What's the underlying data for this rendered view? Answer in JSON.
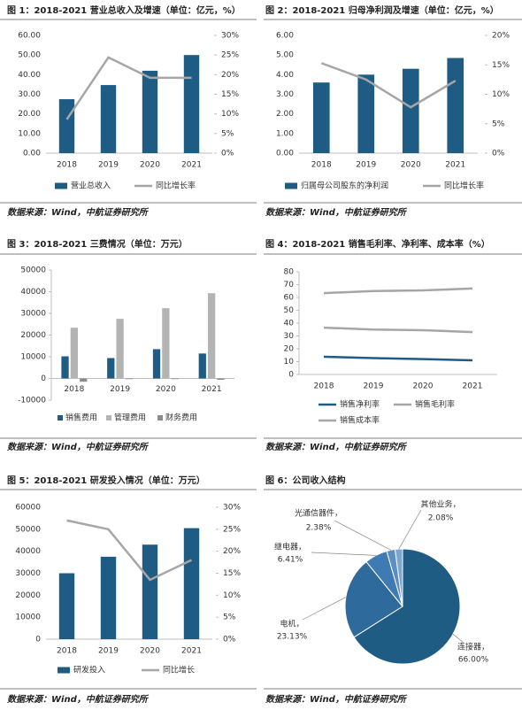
{
  "chart_data": [
    {
      "type": "combo",
      "title": "图 1：2018-2021 营业总收入及增速（单位：亿元，%）",
      "source": "数据来源：Wind，中航证券研究所",
      "categories": [
        "2018",
        "2019",
        "2020",
        "2021"
      ],
      "series": [
        {
          "name": "营业总收入",
          "type": "bar",
          "color": "#1f5c84",
          "values": [
            27.5,
            34.7,
            42,
            50
          ]
        },
        {
          "name": "同比增长率",
          "type": "line",
          "axis": "y2",
          "color": "#a6a6a6",
          "values": [
            8.6,
            24.4,
            19.2,
            19.2
          ]
        }
      ],
      "ylim": [
        0,
        60
      ],
      "yticks": [
        {
          "value": 0,
          "label": "0.00"
        },
        {
          "value": 10,
          "label": "10.00"
        },
        {
          "value": 20,
          "label": "20.00"
        },
        {
          "value": 30,
          "label": "30.00"
        },
        {
          "value": 40,
          "label": "40.00"
        },
        {
          "value": 50,
          "label": "50.00"
        },
        {
          "value": 60,
          "label": "60.00"
        }
      ],
      "y2lim": [
        0,
        30
      ],
      "y2ticks": [
        {
          "value": 0,
          "label": "0%"
        },
        {
          "value": 5,
          "label": "5%"
        },
        {
          "value": 10,
          "label": "10%"
        },
        {
          "value": 15,
          "label": "15%"
        },
        {
          "value": 20,
          "label": "20%"
        },
        {
          "value": 25,
          "label": "25%"
        },
        {
          "value": 30,
          "label": "30%"
        }
      ]
    },
    {
      "type": "combo",
      "title": "图 2：2018-2021 归母净利润及增速（单位：亿元，%）",
      "source": "数据来源：Wind，中航证券研究所",
      "categories": [
        "2018",
        "2019",
        "2020",
        "2021"
      ],
      "series": [
        {
          "name": "归属母公司股东的净利润",
          "type": "bar",
          "color": "#1f5c84",
          "values": [
            3.6,
            4.0,
            4.3,
            4.85
          ]
        },
        {
          "name": "同比增长率",
          "type": "line",
          "axis": "y2",
          "color": "#a6a6a6",
          "values": [
            15.3,
            12.5,
            7.8,
            12.3
          ]
        }
      ],
      "ylim": [
        0,
        6
      ],
      "yticks": [
        {
          "value": 0,
          "label": "0.00"
        },
        {
          "value": 1,
          "label": "1.00"
        },
        {
          "value": 2,
          "label": "2.00"
        },
        {
          "value": 3,
          "label": "3.00"
        },
        {
          "value": 4,
          "label": "4.00"
        },
        {
          "value": 5,
          "label": "5.00"
        },
        {
          "value": 6,
          "label": "6.00"
        }
      ],
      "y2lim": [
        0,
        20
      ],
      "y2ticks": [
        {
          "value": 0,
          "label": "0%"
        },
        {
          "value": 5,
          "label": "5%"
        },
        {
          "value": 10,
          "label": "10%"
        },
        {
          "value": 15,
          "label": "15%"
        },
        {
          "value": 20,
          "label": "20%"
        }
      ]
    },
    {
      "type": "bar",
      "title": "图 3：2018-2021 三费情况（单位：万元）",
      "source": "数据来源：Wind，中航证券研究所",
      "categories": [
        "2018",
        "2019",
        "2020",
        "2021"
      ],
      "series": [
        {
          "name": "销售费用",
          "type": "bar",
          "color": "#1f5c84",
          "values": [
            10200,
            9400,
            13500,
            11500
          ]
        },
        {
          "name": "管理费用",
          "type": "bar",
          "color": "#b3b3b3",
          "values": [
            23400,
            27500,
            32400,
            39300
          ]
        },
        {
          "name": "财务费用",
          "type": "bar",
          "color": "#8c8c8c",
          "values": [
            -1500,
            -300,
            -300,
            -600
          ]
        }
      ],
      "ylim": [
        -10000,
        50000
      ],
      "yticks": [
        -10000,
        0,
        10000,
        20000,
        30000,
        40000,
        50000
      ]
    },
    {
      "type": "line",
      "title": "图 4：2018-2021 销售毛利率、净利率、成本率（%）",
      "source": "数据来源：Wind，中航证券研究所",
      "categories": [
        "2018",
        "2019",
        "2020",
        "2021"
      ],
      "series": [
        {
          "name": "销售净利率",
          "type": "line",
          "color": "#1f5c84",
          "values": [
            13.8,
            12.8,
            12,
            11
          ]
        },
        {
          "name": "销售毛利率",
          "type": "line",
          "color": "#a6a6a6",
          "values": [
            63.4,
            65,
            65.5,
            67
          ]
        },
        {
          "name": "销售成本率",
          "type": "line",
          "color": "#a6a6a6",
          "values": [
            36.5,
            35,
            34.5,
            33
          ]
        }
      ],
      "ylim": [
        0,
        80
      ],
      "yticks": [
        0,
        10,
        20,
        30,
        40,
        50,
        60,
        70,
        80
      ]
    },
    {
      "type": "combo",
      "title": "图 5：2018-2021 研发投入情况（单位：万元）",
      "source": "数据来源：Wind，中航证券研究所",
      "categories": [
        "2018",
        "2019",
        "2020",
        "2021"
      ],
      "series": [
        {
          "name": "研发投入",
          "type": "bar",
          "color": "#1f5c84",
          "values": [
            30000,
            37500,
            43000,
            50500
          ]
        },
        {
          "name": "同比增长",
          "type": "line",
          "axis": "y2",
          "color": "#a6a6a6",
          "values": [
            27,
            25,
            13.5,
            18
          ]
        }
      ],
      "ylim": [
        0,
        60000
      ],
      "yticks": [
        0,
        10000,
        20000,
        30000,
        40000,
        50000,
        60000
      ],
      "y2lim": [
        0,
        30
      ],
      "y2ticks": [
        {
          "value": 0,
          "label": "0%"
        },
        {
          "value": 5,
          "label": "5%"
        },
        {
          "value": 10,
          "label": "10%"
        },
        {
          "value": 15,
          "label": "15%"
        },
        {
          "value": 20,
          "label": "20%"
        },
        {
          "value": 25,
          "label": "25%"
        },
        {
          "value": 30,
          "label": "30%"
        }
      ]
    },
    {
      "type": "pie",
      "title": "图 6：公司收入结构",
      "source": "数据来源：Wind，中航证券研究所",
      "categories": [
        "连接器，",
        "电机，",
        "继电器，",
        "光通信器件，",
        "其他业务，"
      ],
      "values": [
        66,
        23.13,
        6.41,
        2.38,
        2.08
      ],
      "value_labels": [
        "66.00%",
        "23.13%",
        "6.41%",
        "2.38%",
        "2.08%"
      ],
      "colors": [
        "#1f5c84",
        "#2f6a9c",
        "#3f7bb2",
        "#5b8fc2",
        "#7ba6d2"
      ]
    }
  ]
}
